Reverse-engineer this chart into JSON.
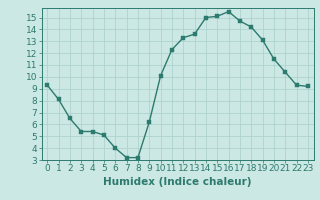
{
  "x": [
    0,
    1,
    2,
    3,
    4,
    5,
    6,
    7,
    8,
    9,
    10,
    11,
    12,
    13,
    14,
    15,
    16,
    17,
    18,
    19,
    20,
    21,
    22,
    23
  ],
  "y": [
    9.3,
    8.1,
    6.5,
    5.4,
    5.4,
    5.1,
    4.0,
    3.2,
    3.2,
    6.2,
    10.1,
    12.3,
    13.3,
    13.6,
    15.0,
    15.1,
    15.5,
    14.7,
    14.2,
    13.1,
    11.5,
    10.4,
    9.3,
    9.2
  ],
  "line_color": "#2d7a6e",
  "marker_color": "#2d7a6e",
  "bg_color": "#cce8e4",
  "grid_color": "#aacfca",
  "axis_color": "#2d7a6e",
  "xlabel": "Humidex (Indice chaleur)",
  "ylim": [
    3,
    15.8
  ],
  "xlim": [
    -0.5,
    23.5
  ],
  "yticks": [
    3,
    4,
    5,
    6,
    7,
    8,
    9,
    10,
    11,
    12,
    13,
    14,
    15
  ],
  "xticks": [
    0,
    1,
    2,
    3,
    4,
    5,
    6,
    7,
    8,
    9,
    10,
    11,
    12,
    13,
    14,
    15,
    16,
    17,
    18,
    19,
    20,
    21,
    22,
    23
  ],
  "xlabel_fontsize": 7.5,
  "tick_fontsize": 6.5,
  "line_width": 1.0,
  "marker_size": 2.5
}
